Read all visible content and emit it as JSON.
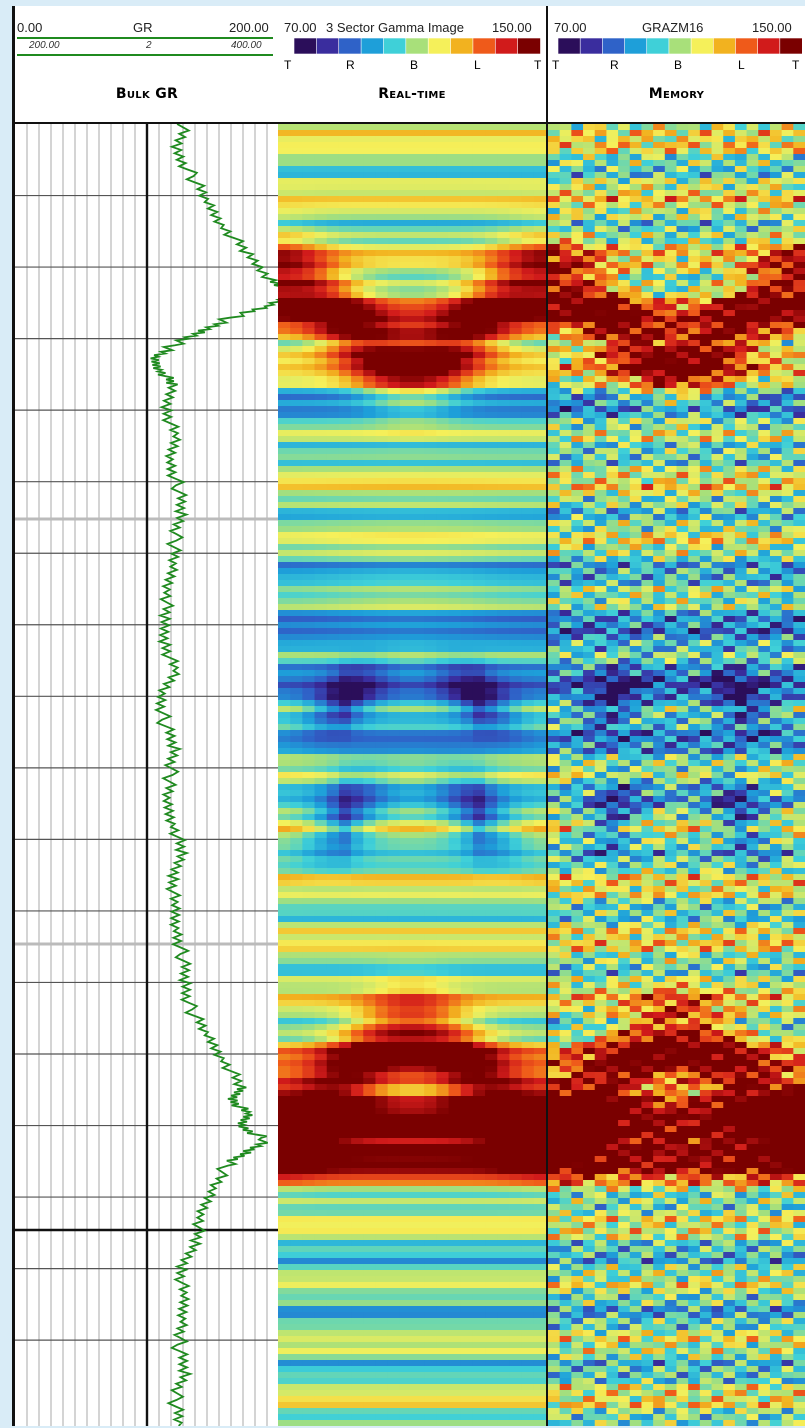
{
  "track_gr": {
    "scale_min": "0.00",
    "scale_name": "GR",
    "scale_max": "200.00",
    "backup_min": "200.00",
    "backup_mid": "2",
    "backup_max": "400.00",
    "title": "Bulk GR",
    "curve_color": "#1f8a1f"
  },
  "track_realtime": {
    "scale_min": "70.00",
    "scale_name": "3 Sector Gamma Image",
    "scale_max": "150.00",
    "orientation_labels": [
      "T",
      "R",
      "B",
      "L",
      "T"
    ],
    "title": "Real-time"
  },
  "track_memory": {
    "scale_min": "70.00",
    "scale_name": "GRAZM16",
    "scale_max": "150.00",
    "orientation_labels": [
      "T",
      "R",
      "B",
      "L",
      "T"
    ],
    "title": "Memory"
  },
  "colormap": [
    "#2b0e5a",
    "#3a2d9e",
    "#2f62c8",
    "#1e9fd9",
    "#3fd0d8",
    "#a8e07a",
    "#f5f05a",
    "#f2b21f",
    "#ef5a1a",
    "#d11b1b",
    "#7a0000"
  ],
  "chart_data": {
    "type": "line",
    "xlabel": "GR",
    "xlim": [
      0,
      200
    ],
    "series": [
      {
        "name": "GR",
        "depth_fraction": [
          0.0,
          0.02,
          0.04,
          0.06,
          0.08,
          0.1,
          0.12,
          0.13,
          0.14,
          0.15,
          0.16,
          0.17,
          0.18,
          0.19,
          0.2,
          0.22,
          0.24,
          0.26,
          0.28,
          0.3,
          0.32,
          0.34,
          0.36,
          0.38,
          0.4,
          0.42,
          0.44,
          0.46,
          0.48,
          0.5,
          0.52,
          0.54,
          0.56,
          0.58,
          0.6,
          0.62,
          0.64,
          0.66,
          0.68,
          0.7,
          0.72,
          0.74,
          0.75,
          0.76,
          0.77,
          0.78,
          0.79,
          0.8,
          0.82,
          0.84,
          0.86,
          0.88,
          0.9,
          0.92,
          0.94,
          0.96,
          0.98,
          1.0
        ],
        "values": [
          128,
          122,
          134,
          145,
          160,
          175,
          195,
          212,
          192,
          160,
          140,
          120,
          104,
          112,
          118,
          116,
          120,
          118,
          124,
          126,
          121,
          119,
          117,
          112,
          115,
          120,
          111,
          113,
          121,
          118,
          114,
          122,
          125,
          121,
          119,
          123,
          127,
          129,
          133,
          145,
          160,
          170,
          166,
          175,
          172,
          190,
          175,
          160,
          148,
          142,
          135,
          127,
          126,
          128,
          124,
          129,
          121,
          124
        ]
      }
    ]
  }
}
